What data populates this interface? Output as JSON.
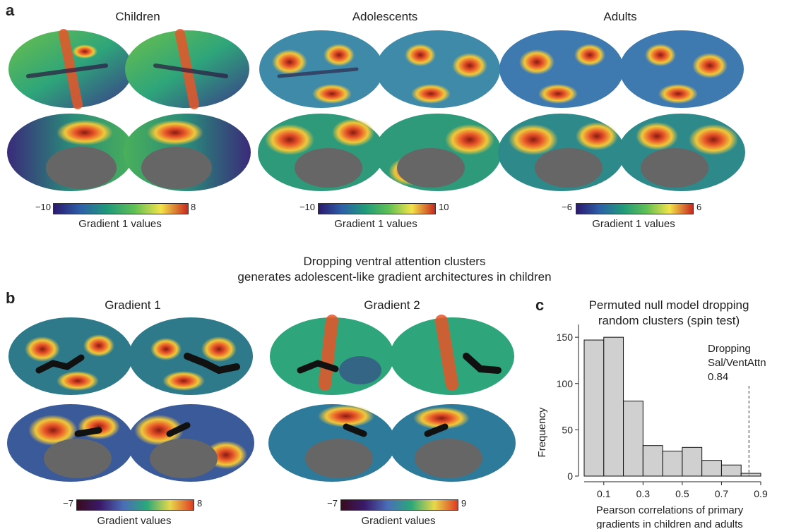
{
  "panel_a": {
    "letter": "a",
    "groups": [
      {
        "title": "Children",
        "cb_min": "−10",
        "cb_max": "8",
        "cb_label": "Gradient 1 values"
      },
      {
        "title": "Adolescents",
        "cb_min": "−10",
        "cb_max": "10",
        "cb_label": "Gradient 1 values"
      },
      {
        "title": "Adults",
        "cb_min": "−6",
        "cb_max": "6",
        "cb_label": "Gradient 1 values"
      }
    ]
  },
  "heading": {
    "line1": "Dropping ventral attention clusters",
    "line2": "generates adolescent-like gradient architectures in children"
  },
  "panel_b": {
    "letter": "b",
    "groups": [
      {
        "title": "Gradient 1",
        "cb_min": "−7",
        "cb_max": "8",
        "cb_label": "Gradient values"
      },
      {
        "title": "Gradient 2",
        "cb_min": "−7",
        "cb_max": "9",
        "cb_label": "Gradient values"
      }
    ]
  },
  "panel_c": {
    "letter": "c",
    "annotation": [
      "Dropping",
      "Sal/VentAttn",
      "0.84"
    ]
  },
  "colors": {
    "low": "#3b1f6e",
    "mid": "#2aa27a",
    "high": "#e8552a",
    "cortex_gray": "#666666"
  },
  "chart_data": {
    "type": "bar",
    "title": "Permuted null model dropping random clusters (spin test)",
    "title_lines": [
      "Permuted null model dropping",
      "random clusters (spin test)"
    ],
    "xlabel": "Pearson correlations of primary gradients in children and adults",
    "xlabel_lines": [
      "Pearson correlations of primary",
      "gradients in children and adults"
    ],
    "ylabel": "Frequency",
    "bins": [
      {
        "x0": 0.0,
        "x1": 0.1,
        "value": 147
      },
      {
        "x0": 0.1,
        "x1": 0.2,
        "value": 150
      },
      {
        "x0": 0.2,
        "x1": 0.3,
        "value": 81
      },
      {
        "x0": 0.3,
        "x1": 0.4,
        "value": 33
      },
      {
        "x0": 0.4,
        "x1": 0.5,
        "value": 27
      },
      {
        "x0": 0.5,
        "x1": 0.6,
        "value": 31
      },
      {
        "x0": 0.6,
        "x1": 0.7,
        "value": 17
      },
      {
        "x0": 0.7,
        "x1": 0.8,
        "value": 12
      },
      {
        "x0": 0.8,
        "x1": 0.9,
        "value": 3
      }
    ],
    "xlim": [
      0.0,
      0.9
    ],
    "ylim": [
      0,
      160
    ],
    "xticks": [
      "0.1",
      "0.3",
      "0.5",
      "0.7",
      "0.9"
    ],
    "yticks": [
      "0",
      "50",
      "100",
      "150"
    ],
    "reference_line": 0.84,
    "bar_color": "#d0d0d0"
  }
}
